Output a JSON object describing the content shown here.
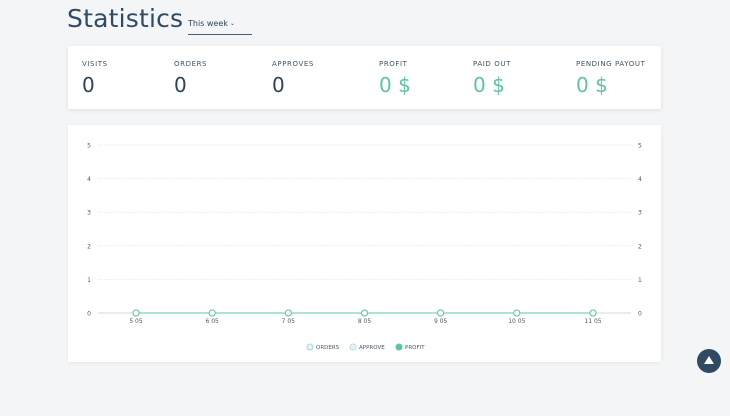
{
  "header": {
    "title": "Statistics",
    "period": "This week"
  },
  "stats": [
    {
      "label": "VISITS",
      "value": "0"
    },
    {
      "label": "ORDERS",
      "value": "0"
    },
    {
      "label": "APPROVES",
      "value": "0"
    },
    {
      "label": "PROFIT",
      "value": "0 $"
    },
    {
      "label": "PAID OUT",
      "value": "0 $"
    },
    {
      "label": "PENDING PAYOUT",
      "value": "0 $"
    }
  ],
  "colors": {
    "accent": "#5ec4a3",
    "text_dark": "#2e4359",
    "orders": "#9ed9df",
    "approve": "#b3dfe8",
    "profit": "#5ec4a3"
  },
  "chart_data": {
    "type": "line",
    "categories": [
      "5 05",
      "6 05",
      "7 05",
      "8 05",
      "9 05",
      "10 05",
      "11 05"
    ],
    "ylim": [
      0,
      5
    ],
    "y_ticks": [
      "0",
      "1",
      "2",
      "3",
      "4",
      "5"
    ],
    "y_ticks_right": [
      "0",
      "1",
      "2",
      "3",
      "4",
      "5"
    ],
    "grid": true,
    "legend_position": "bottom",
    "series": [
      {
        "name": "ORDERS",
        "values": [
          0,
          0,
          0,
          0,
          0,
          0,
          0
        ]
      },
      {
        "name": "APPROVE",
        "values": [
          0,
          0,
          0,
          0,
          0,
          0,
          0
        ]
      },
      {
        "name": "PROFIT",
        "values": [
          0,
          0,
          0,
          0,
          0,
          0,
          0
        ]
      }
    ]
  }
}
